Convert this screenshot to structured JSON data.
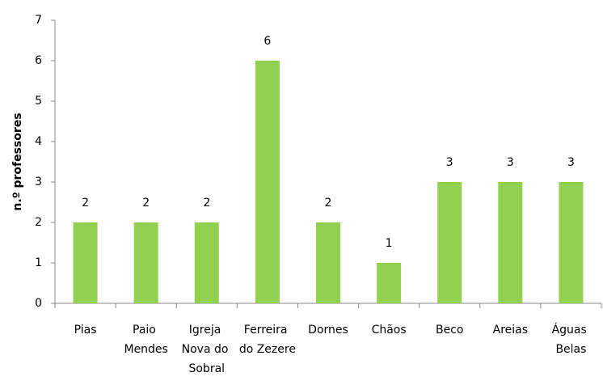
{
  "chart_data": {
    "type": "bar",
    "y_label": "n.º professores",
    "categories": [
      "Pias",
      "Paio Mendes",
      "Igreja Nova do Sobral",
      "Ferreira do Zezere",
      "Dornes",
      "Chãos",
      "Beco",
      "Areias",
      "Águas Belas"
    ],
    "values": [
      2,
      2,
      2,
      6,
      2,
      1,
      3,
      3,
      3
    ],
    "color": "#92d050",
    "ylim": [
      0,
      7
    ],
    "yticks": [
      0,
      1,
      2,
      3,
      4,
      5,
      6,
      7
    ],
    "grid": false
  }
}
